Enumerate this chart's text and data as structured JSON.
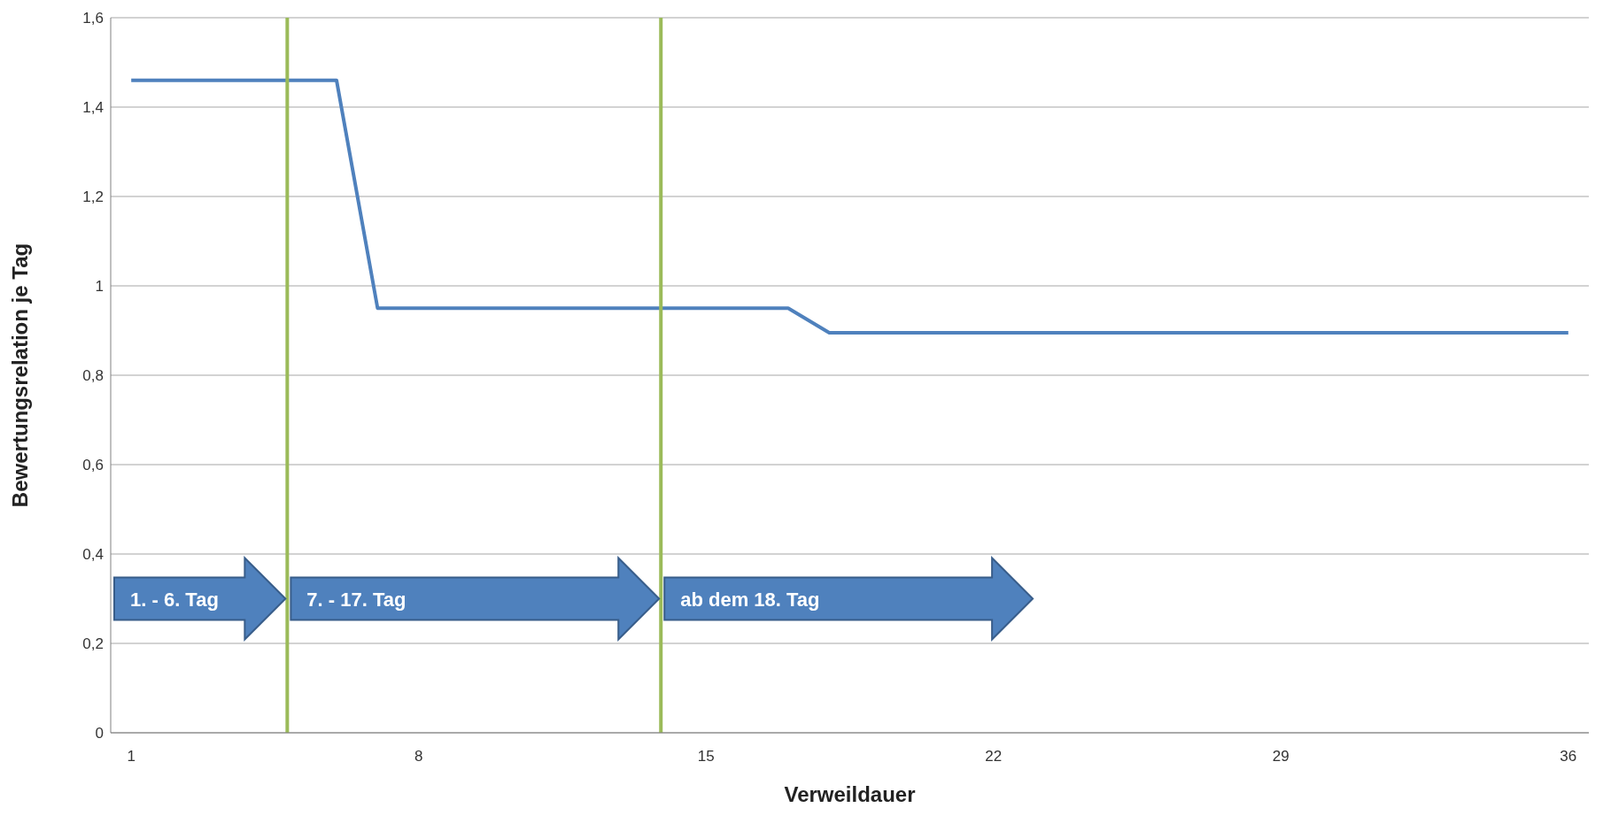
{
  "chart_data": {
    "type": "line",
    "xlabel": "Verweildauer",
    "ylabel": "Bewertungsrelation je Tag",
    "x": [
      1,
      2,
      3,
      4,
      5,
      6,
      7,
      8,
      9,
      10,
      11,
      12,
      13,
      14,
      15,
      16,
      17,
      18,
      19,
      20,
      21,
      22,
      23,
      24,
      25,
      26,
      27,
      28,
      29,
      30,
      31,
      32,
      33,
      34,
      35,
      36
    ],
    "series": [
      {
        "color": "#4f81bd",
        "values": [
          1.46,
          1.46,
          1.46,
          1.46,
          1.46,
          1.46,
          0.95,
          0.95,
          0.95,
          0.95,
          0.95,
          0.95,
          0.95,
          0.95,
          0.95,
          0.95,
          0.95,
          0.895,
          0.895,
          0.895,
          0.895,
          0.895,
          0.895,
          0.895,
          0.895,
          0.895,
          0.895,
          0.895,
          0.895,
          0.895,
          0.895,
          0.895,
          0.895,
          0.895,
          0.895,
          0.895
        ]
      }
    ],
    "xlim": [
      0.5,
      36.5
    ],
    "xticks": [
      1,
      8,
      15,
      22,
      29,
      36
    ],
    "ylim": [
      0,
      1.6
    ],
    "yticks": [
      0,
      {
        "value": 0.2,
        "label": "0,2"
      },
      {
        "value": 0.4,
        "label": "0,4"
      },
      {
        "value": 0.6,
        "label": "0,6"
      },
      {
        "value": 0.8,
        "label": "0,8"
      },
      1,
      {
        "value": 1.2,
        "label": "1,2"
      },
      {
        "value": 1.4,
        "label": "1,4"
      },
      {
        "value": 1.6,
        "label": "1,6"
      }
    ],
    "grid": "y",
    "marker": "none",
    "line_style": "solid",
    "ref_lines": [
      {
        "axis": "x",
        "value": 4.8,
        "color": "#9bbb59"
      },
      {
        "axis": "x",
        "value": 13.9,
        "color": "#9bbb59"
      }
    ],
    "annotations": [
      "1. - 6. Tag",
      "7. - 17. Tag",
      "ab dem 18. Tag"
    ]
  }
}
